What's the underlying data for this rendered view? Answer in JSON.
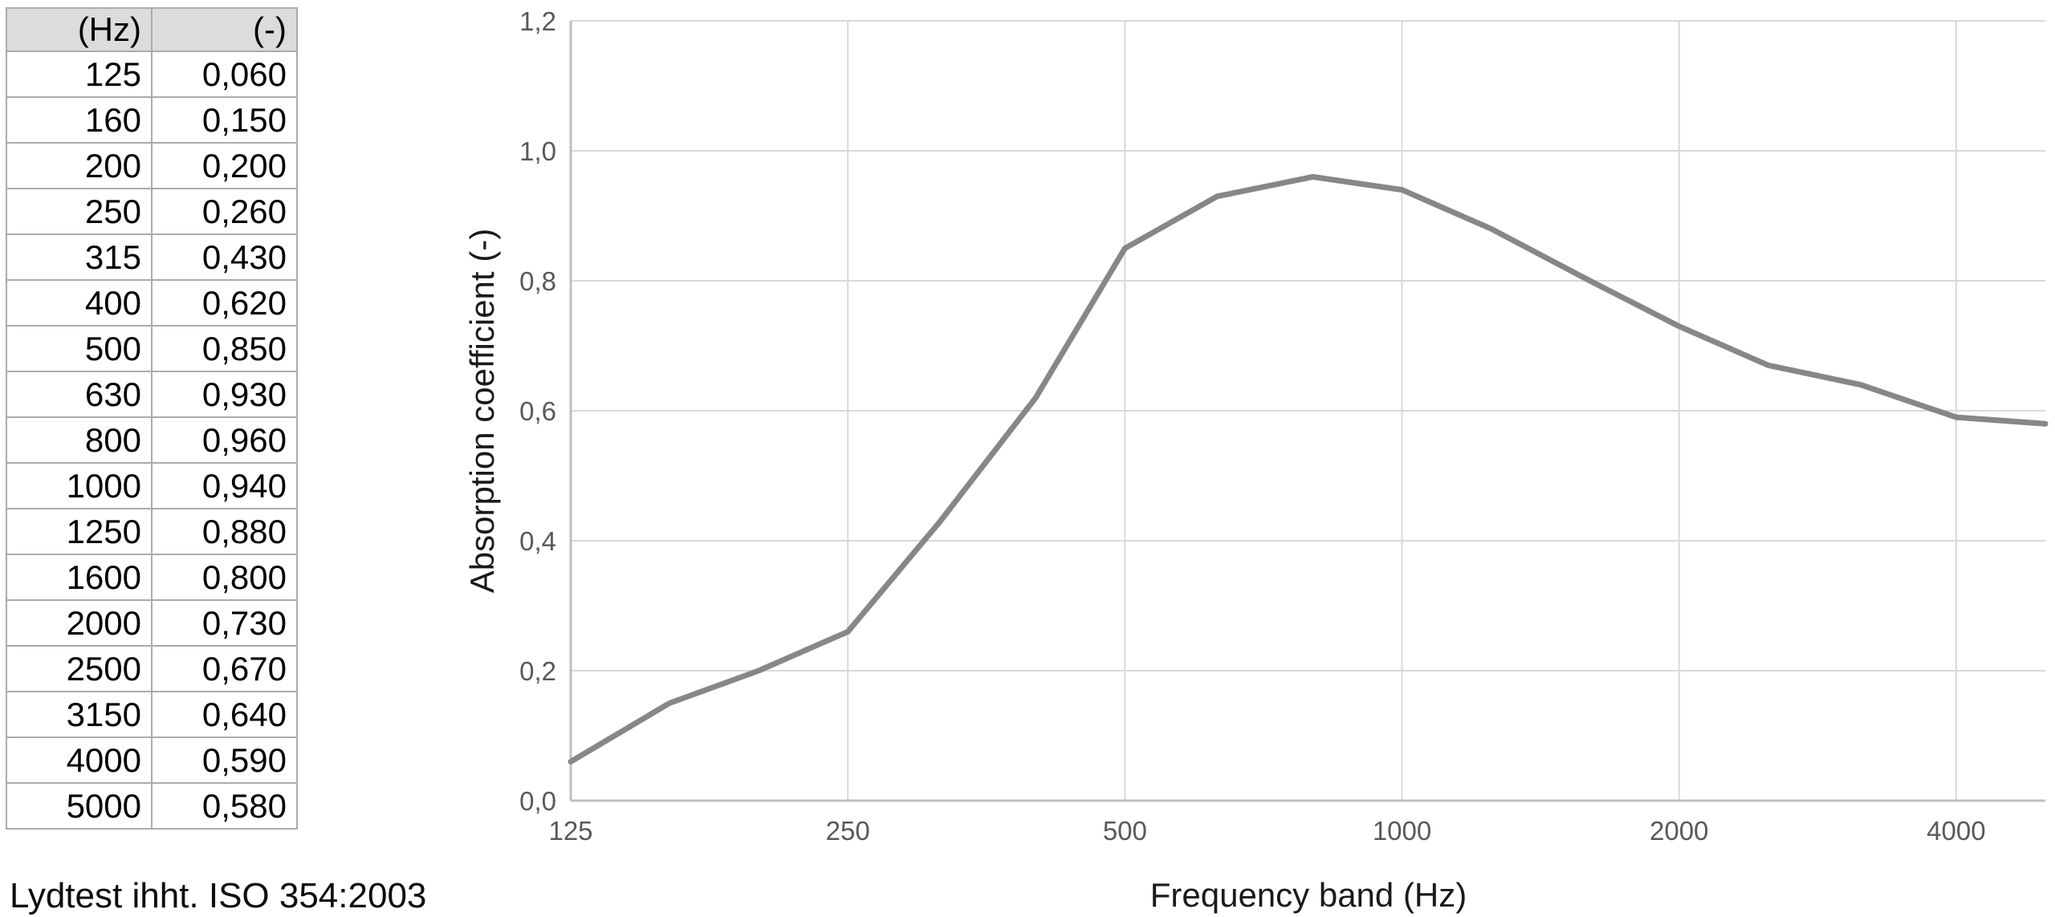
{
  "table": {
    "headers": [
      "(Hz)",
      "(-)"
    ],
    "rows": [
      [
        "125",
        "0,060"
      ],
      [
        "160",
        "0,150"
      ],
      [
        "200",
        "0,200"
      ],
      [
        "250",
        "0,260"
      ],
      [
        "315",
        "0,430"
      ],
      [
        "400",
        "0,620"
      ],
      [
        "500",
        "0,850"
      ],
      [
        "630",
        "0,930"
      ],
      [
        "800",
        "0,960"
      ],
      [
        "1000",
        "0,940"
      ],
      [
        "1250",
        "0,880"
      ],
      [
        "1600",
        "0,800"
      ],
      [
        "2000",
        "0,730"
      ],
      [
        "2500",
        "0,670"
      ],
      [
        "3150",
        "0,640"
      ],
      [
        "4000",
        "0,590"
      ],
      [
        "5000",
        "0,580"
      ]
    ]
  },
  "footnote": "Lydtest ihht. ISO 354:2003",
  "chart_data": {
    "type": "line",
    "x": [
      125,
      160,
      200,
      250,
      315,
      400,
      500,
      630,
      800,
      1000,
      1250,
      1600,
      2000,
      2500,
      3150,
      4000,
      5000
    ],
    "values": [
      0.06,
      0.15,
      0.2,
      0.26,
      0.43,
      0.62,
      0.85,
      0.93,
      0.96,
      0.94,
      0.88,
      0.8,
      0.73,
      0.67,
      0.64,
      0.59,
      0.58
    ],
    "title": "",
    "xlabel": "Frequency band (Hz)",
    "ylabel": "Absorption coefficient (-)",
    "x_scale": "log2",
    "xlim": [
      125,
      5000
    ],
    "ylim": [
      0,
      1.2
    ],
    "x_ticks": [
      {
        "v": 125,
        "label": "125"
      },
      {
        "v": 250,
        "label": "250"
      },
      {
        "v": 500,
        "label": "500"
      },
      {
        "v": 1000,
        "label": "1000"
      },
      {
        "v": 2000,
        "label": "2000"
      },
      {
        "v": 4000,
        "label": "4000"
      }
    ],
    "y_ticks": [
      {
        "v": 0.0,
        "label": "0,0"
      },
      {
        "v": 0.2,
        "label": "0,2"
      },
      {
        "v": 0.4,
        "label": "0,4"
      },
      {
        "v": 0.6,
        "label": "0,6"
      },
      {
        "v": 0.8,
        "label": "0,8"
      },
      {
        "v": 1.0,
        "label": "1,0"
      },
      {
        "v": 1.2,
        "label": "1,2"
      }
    ],
    "grid": true,
    "legend": "none",
    "colors": {
      "line": "#878787",
      "gridline": "#d9d9d9",
      "axis": "#bfbfbf",
      "tick_label": "#595959",
      "axis_title": "#1a1a1a"
    }
  }
}
